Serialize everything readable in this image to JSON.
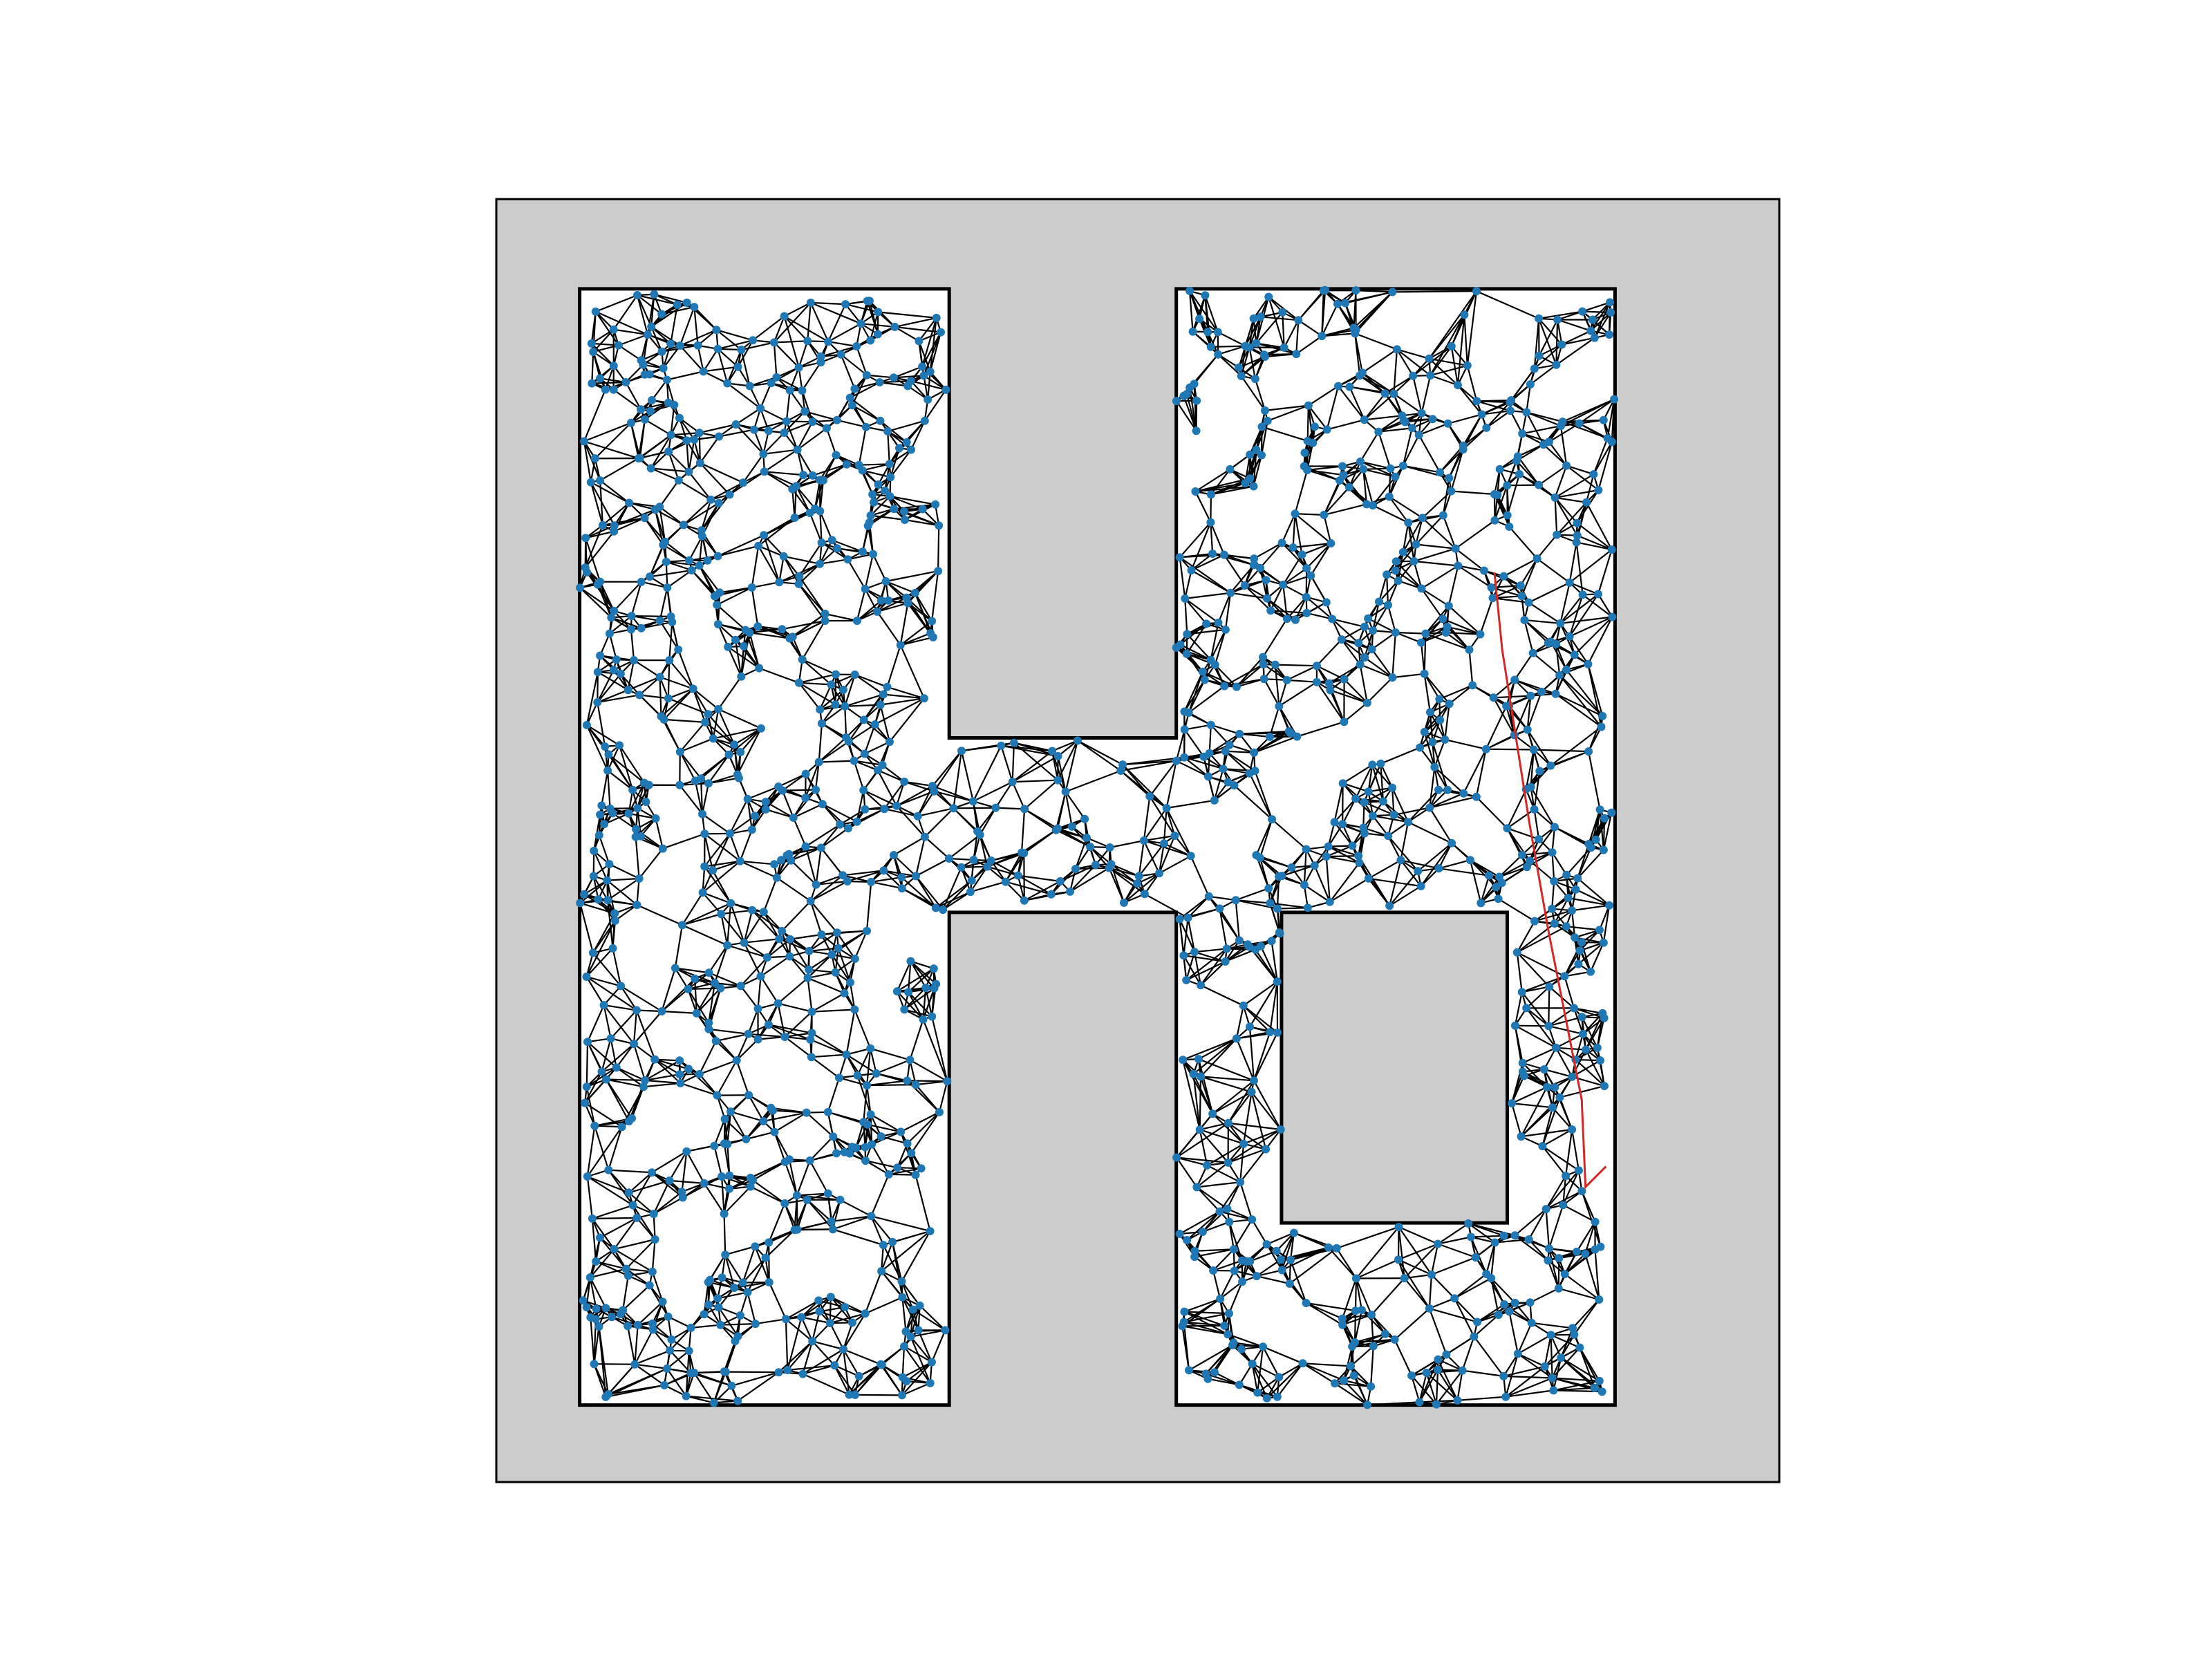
{
  "colors": {
    "background": "#ffffff",
    "obstacle": "#cccccc",
    "free_space": "#ffffff",
    "boundary": "#000000",
    "edge": "#000000",
    "node": "#1f77b4",
    "path": "#d62728"
  },
  "chart_data": {
    "type": "scatter",
    "description_role": "probabilistic-roadmap",
    "xlim": [
      0,
      100
    ],
    "ylim": [
      0,
      100
    ],
    "grid": false,
    "legend": "none",
    "free_regions": [
      {
        "name": "left-bar",
        "x": [
          6.5,
          35.3
        ],
        "y": [
          6.0,
          93.0
        ]
      },
      {
        "name": "crossbar",
        "x": [
          35.3,
          53.0
        ],
        "y": [
          44.4,
          58.0
        ]
      },
      {
        "name": "right-block",
        "x": [
          53.0,
          87.2
        ],
        "y": [
          6.0,
          93.0
        ]
      }
    ],
    "inner_obstacle": {
      "x": [
        61.2,
        78.8
      ],
      "y": [
        20.2,
        44.4
      ]
    },
    "node_count": 1300,
    "k_neighbors": 6,
    "path": [
      [
        77.8,
        70.9
      ],
      [
        78.4,
        64.9
      ],
      [
        80.5,
        51.5
      ],
      [
        82.0,
        43.0
      ],
      [
        84.6,
        29.8
      ],
      [
        84.9,
        23.0
      ],
      [
        86.5,
        24.6
      ]
    ]
  }
}
